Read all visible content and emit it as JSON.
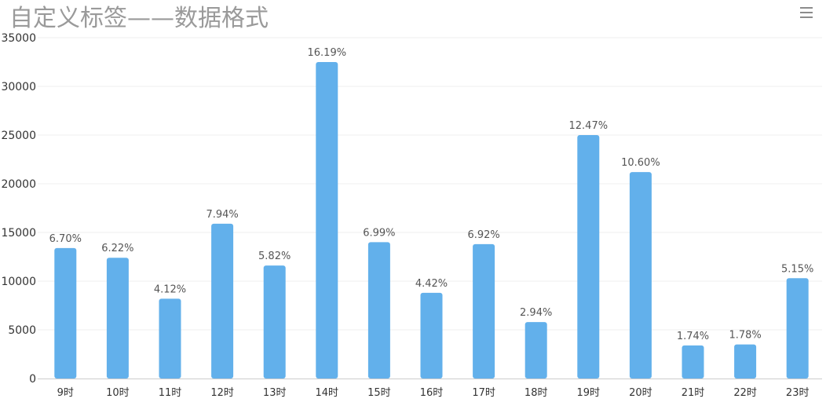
{
  "chart_data": {
    "type": "bar",
    "title": "自定义标签——数据格式",
    "categories": [
      "9时",
      "10时",
      "11时",
      "12时",
      "13时",
      "14时",
      "15时",
      "16时",
      "17时",
      "18时",
      "19时",
      "20时",
      "21时",
      "22时",
      "23时"
    ],
    "values": [
      13400,
      12400,
      8200,
      15900,
      11600,
      32500,
      14000,
      8800,
      13800,
      5800,
      25000,
      21200,
      3400,
      3500,
      10300
    ],
    "data_labels": [
      "6.70%",
      "6.22%",
      "4.12%",
      "7.94%",
      "5.82%",
      "16.19%",
      "6.99%",
      "4.42%",
      "6.92%",
      "2.94%",
      "12.47%",
      "10.60%",
      "1.74%",
      "1.78%",
      "5.15%"
    ],
    "ylim": [
      0,
      35000
    ],
    "yticks": [
      "0",
      "5000",
      "10000",
      "15000",
      "20000",
      "25000",
      "30000",
      "35000"
    ],
    "xlabel": "",
    "ylabel": "",
    "grid": true,
    "legend": "none",
    "bar_color": "#62b0eb",
    "grid_color": "#efefef",
    "axis_color": "#cccccc"
  },
  "toolbar": {
    "menu_icon": "hamburger-menu-icon"
  }
}
